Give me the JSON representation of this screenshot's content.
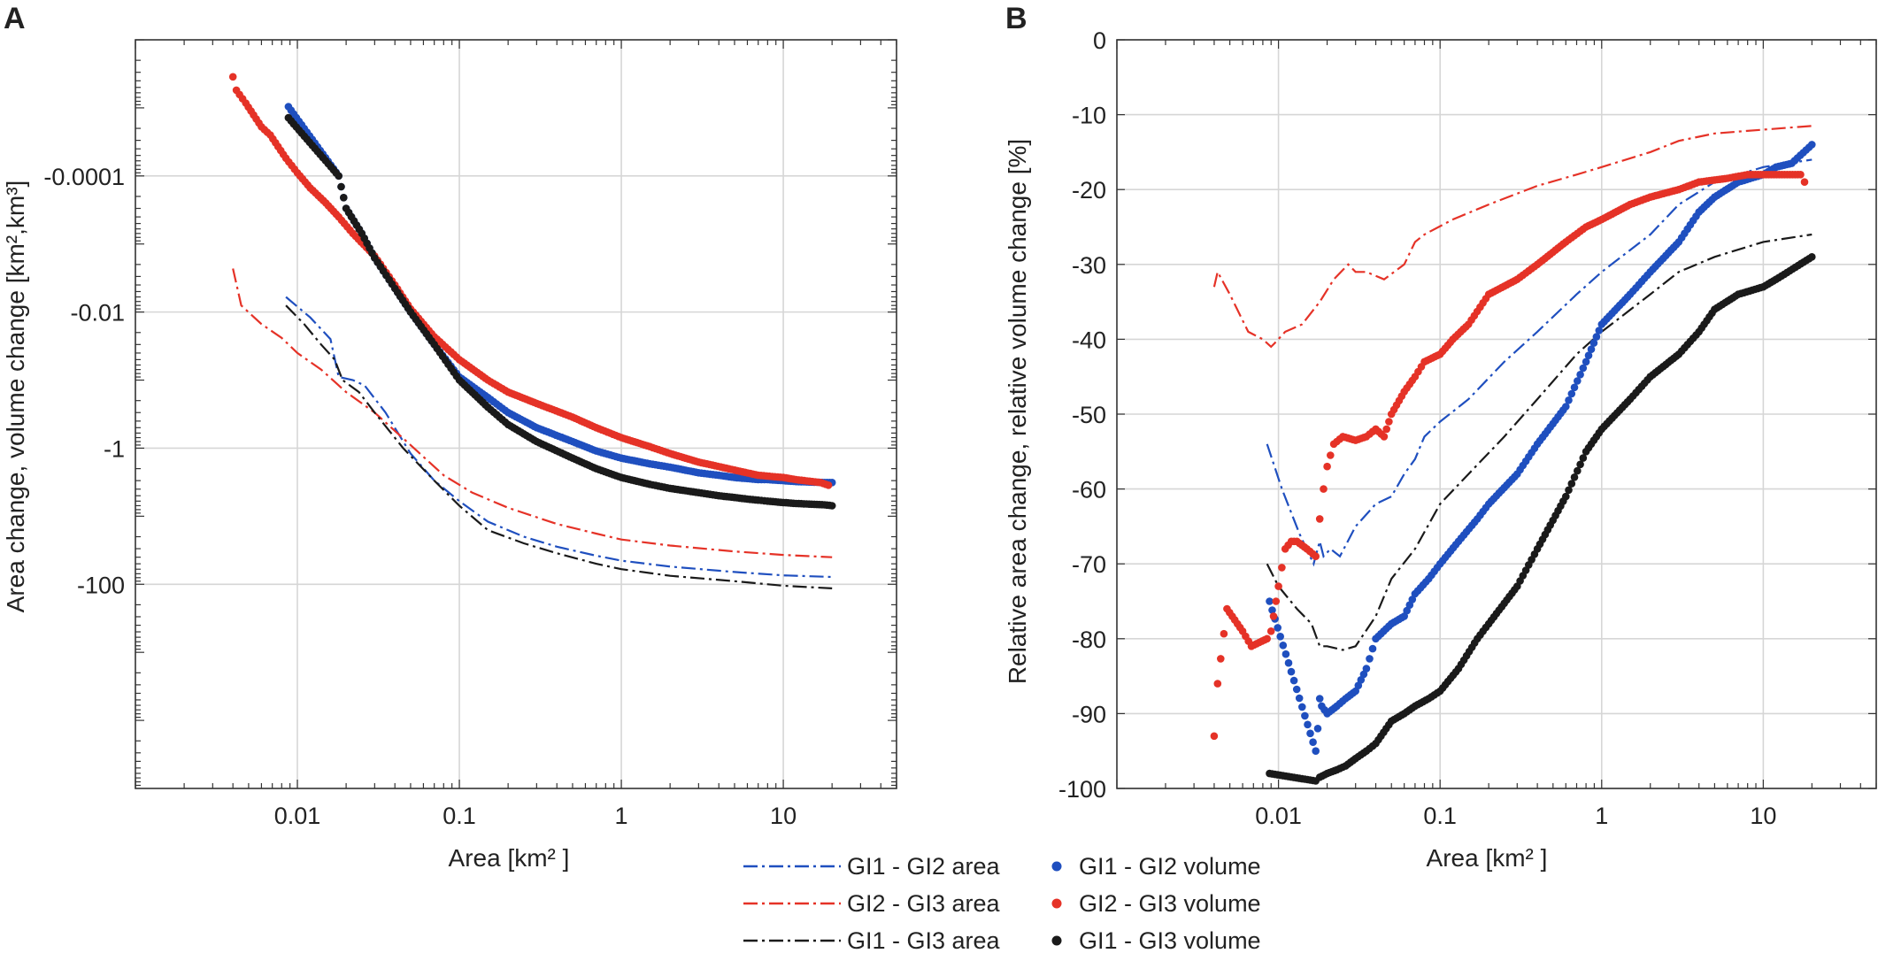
{
  "panel_labels": [
    "A",
    "B"
  ],
  "colors": {
    "gi1_gi2": "#1f4fbf",
    "gi2_gi3": "#e53227",
    "gi1_gi3": "#1a1a1a",
    "grid": "#d6d6d6",
    "axis": "#333333"
  },
  "legend": {
    "items": [
      {
        "label": "GI1 - GI2 area",
        "kind": "line",
        "color": "#1f4fbf"
      },
      {
        "label": "GI2 - GI3 area",
        "kind": "line",
        "color": "#e53227"
      },
      {
        "label": "GI1 - GI3 area",
        "kind": "line",
        "color": "#1a1a1a"
      },
      {
        "label": "GI1 - GI2 volume",
        "kind": "dots",
        "color": "#1f4fbf"
      },
      {
        "label": "GI2 - GI3 volume",
        "kind": "dots",
        "color": "#e53227"
      },
      {
        "label": "GI1 - GI3 volume",
        "kind": "dots",
        "color": "#1a1a1a"
      }
    ]
  },
  "chart_data": [
    {
      "panel": "A",
      "type": "scatter",
      "title": "",
      "xlabel": "Area  [km² ]",
      "ylabel": "Area change, volume change [km²,km³]",
      "xscale": "log",
      "yscale": "log (negative, downward)",
      "xlim": [
        0.001,
        50
      ],
      "ylim_magnitude": [
        1e-06,
        100000
      ],
      "xticks": [
        0.01,
        0.1,
        1,
        10
      ],
      "xtick_labels": [
        "0.01",
        "0.1",
        "1",
        "10"
      ],
      "yticks": [
        0.0001,
        0.01,
        1,
        100
      ],
      "ytick_labels": [
        "-0.0001",
        "-0.01",
        "-1",
        "-100"
      ],
      "grid": true,
      "series": [
        {
          "name": "GI1 - GI2 area",
          "kind": "line",
          "color": "#1f4fbf",
          "x": [
            0.0085,
            0.012,
            0.016,
            0.018,
            0.022,
            0.026,
            0.035,
            0.05,
            0.07,
            0.1,
            0.15,
            0.25,
            0.4,
            0.7,
            1,
            2,
            5,
            10,
            20
          ],
          "y": [
            -0.006,
            -0.012,
            -0.025,
            -0.09,
            -0.1,
            -0.12,
            -0.3,
            -1.2,
            -3,
            -6,
            -12,
            -20,
            -28,
            -38,
            -45,
            -55,
            -66,
            -74,
            -78
          ]
        },
        {
          "name": "GI2 - GI3 area",
          "kind": "line",
          "color": "#e53227",
          "x": [
            0.004,
            0.0045,
            0.006,
            0.008,
            0.01,
            0.014,
            0.02,
            0.03,
            0.05,
            0.08,
            0.12,
            0.2,
            0.4,
            0.7,
            1,
            2,
            5,
            10,
            20
          ],
          "y": [
            -0.0023,
            -0.008,
            -0.015,
            -0.024,
            -0.04,
            -0.07,
            -0.15,
            -0.3,
            -0.9,
            -2.5,
            -4.5,
            -7.5,
            -13,
            -18,
            -22,
            -27,
            -33,
            -37,
            -40
          ]
        },
        {
          "name": "GI1 - GI3 area",
          "kind": "line",
          "color": "#1a1a1a",
          "x": [
            0.0085,
            0.011,
            0.014,
            0.017,
            0.019,
            0.024,
            0.03,
            0.045,
            0.07,
            0.1,
            0.15,
            0.25,
            0.4,
            0.7,
            1,
            2,
            5,
            10,
            20
          ],
          "y": [
            -0.008,
            -0.015,
            -0.03,
            -0.05,
            -0.1,
            -0.15,
            -0.3,
            -1,
            -3,
            -7,
            -16,
            -25,
            -35,
            -50,
            -60,
            -75,
            -90,
            -105,
            -115
          ]
        },
        {
          "name": "GI1 - GI2 volume",
          "kind": "dots",
          "color": "#1f4fbf",
          "x": [
            0.0088,
            0.018,
            0.02,
            0.025,
            0.03,
            0.04,
            0.05,
            0.07,
            0.1,
            0.15,
            0.2,
            0.3,
            0.5,
            0.7,
            1,
            1.5,
            2,
            3,
            4,
            5,
            6,
            7,
            8,
            10,
            12,
            18,
            20
          ],
          "y": [
            -9.6e-06,
            -0.0001,
            -0.0003,
            -0.0007,
            -0.0016,
            -0.0045,
            -0.01,
            -0.03,
            -0.09,
            -0.18,
            -0.3,
            -0.5,
            -0.8,
            -1.1,
            -1.4,
            -1.7,
            -1.9,
            -2.3,
            -2.5,
            -2.7,
            -2.8,
            -2.9,
            -2.9,
            -3.0,
            -3.1,
            -3.2,
            -3.2
          ]
        },
        {
          "name": "GI2 - GI3 volume",
          "kind": "dots",
          "color": "#e53227",
          "x": [
            0.004,
            0.0042,
            0.0048,
            0.006,
            0.0068,
            0.0085,
            0.01,
            0.012,
            0.015,
            0.018,
            0.022,
            0.03,
            0.04,
            0.05,
            0.07,
            0.1,
            0.15,
            0.2,
            0.3,
            0.5,
            0.7,
            1,
            1.5,
            2,
            3,
            5,
            7,
            10,
            12,
            17,
            19
          ],
          "y": [
            -3.5e-06,
            -5.5e-06,
            -8.5e-06,
            -1.9e-05,
            -2.5e-05,
            -5.5e-05,
            -9e-05,
            -0.00015,
            -0.00025,
            -0.0004,
            -0.0007,
            -0.0015,
            -0.004,
            -0.009,
            -0.023,
            -0.05,
            -0.1,
            -0.15,
            -0.22,
            -0.35,
            -0.5,
            -0.7,
            -0.95,
            -1.2,
            -1.6,
            -2.1,
            -2.5,
            -2.7,
            -2.9,
            -3.2,
            -3.5
          ]
        },
        {
          "name": "GI1 - GI3 volume",
          "kind": "dots",
          "color": "#1a1a1a",
          "x": [
            0.0088,
            0.018,
            0.02,
            0.025,
            0.03,
            0.04,
            0.05,
            0.07,
            0.1,
            0.15,
            0.2,
            0.3,
            0.5,
            0.7,
            1,
            1.5,
            2,
            3,
            4,
            5,
            6,
            7,
            8,
            10,
            12,
            18,
            20
          ],
          "y": [
            -1.4e-05,
            -0.0001,
            -0.0003,
            -0.0007,
            -0.0016,
            -0.0045,
            -0.01,
            -0.03,
            -0.1,
            -0.25,
            -0.45,
            -0.8,
            -1.4,
            -2,
            -2.7,
            -3.4,
            -3.9,
            -4.5,
            -5,
            -5.3,
            -5.6,
            -5.8,
            -6,
            -6.3,
            -6.5,
            -6.8,
            -7
          ]
        }
      ]
    },
    {
      "panel": "B",
      "type": "scatter",
      "title": "",
      "xlabel": "Area  [km² ]",
      "ylabel": "Relative area change, relative volume change [%]",
      "xscale": "log",
      "yscale": "linear",
      "xlim": [
        0.001,
        50
      ],
      "ylim": [
        -100,
        0
      ],
      "xticks": [
        0.01,
        0.1,
        1,
        10
      ],
      "xtick_labels": [
        "0.01",
        "0.1",
        "1",
        "10"
      ],
      "yticks": [
        0,
        -10,
        -20,
        -30,
        -40,
        -50,
        -60,
        -70,
        -80,
        -90,
        -100
      ],
      "ytick_labels": [
        "0",
        "-10",
        "-20",
        "-30",
        "-40",
        "-50",
        "-60",
        "-70",
        "-80",
        "-90",
        "-100"
      ],
      "grid": true,
      "series": [
        {
          "name": "GI1 - GI2 area",
          "kind": "line",
          "color": "#1f4fbf",
          "x": [
            0.0085,
            0.0105,
            0.0135,
            0.0165,
            0.018,
            0.019,
            0.021,
            0.024,
            0.03,
            0.04,
            0.05,
            0.06,
            0.07,
            0.08,
            0.1,
            0.15,
            0.25,
            0.4,
            0.7,
            1,
            2,
            3,
            5,
            10,
            20
          ],
          "y": [
            -54,
            -60,
            -66,
            -70,
            -67,
            -69,
            -68,
            -69,
            -65,
            -62,
            -61,
            -58,
            -56,
            -53,
            -51,
            -48,
            -43,
            -39,
            -34,
            -31,
            -26,
            -22,
            -19,
            -17,
            -16
          ]
        },
        {
          "name": "GI2 - GI3 area",
          "kind": "line",
          "color": "#e53227",
          "x": [
            0.004,
            0.0042,
            0.005,
            0.0065,
            0.008,
            0.009,
            0.0095,
            0.011,
            0.014,
            0.018,
            0.022,
            0.027,
            0.03,
            0.035,
            0.045,
            0.06,
            0.07,
            0.08,
            0.12,
            0.2,
            0.4,
            0.7,
            1,
            2,
            3,
            5,
            10,
            20
          ],
          "y": [
            -33,
            -31,
            -34,
            -39,
            -40,
            -41,
            -40.5,
            -39,
            -38,
            -35,
            -32,
            -30,
            -31,
            -31,
            -32,
            -30,
            -27,
            -26,
            -24,
            -22,
            -19.5,
            -18,
            -17,
            -15,
            -13.5,
            -12.5,
            -12,
            -11.5
          ]
        },
        {
          "name": "GI1 - GI3 area",
          "kind": "line",
          "color": "#1a1a1a",
          "x": [
            0.0085,
            0.01,
            0.013,
            0.016,
            0.018,
            0.02,
            0.025,
            0.03,
            0.04,
            0.05,
            0.07,
            0.1,
            0.15,
            0.25,
            0.4,
            0.7,
            1,
            2,
            3,
            5,
            10,
            20
          ],
          "y": [
            -70,
            -73,
            -76,
            -78,
            -81,
            -81,
            -81.5,
            -81,
            -77,
            -72,
            -68,
            -62,
            -58,
            -53,
            -48,
            -42,
            -39,
            -34,
            -31,
            -29,
            -27,
            -26
          ]
        },
        {
          "name": "GI1 - GI2 volume",
          "kind": "dots",
          "color": "#1f4fbf",
          "x": [
            0.0088,
            0.017,
            0.0175,
            0.018,
            0.0185,
            0.02,
            0.023,
            0.026,
            0.03,
            0.035,
            0.04,
            0.05,
            0.06,
            0.07,
            0.085,
            0.1,
            0.13,
            0.17,
            0.2,
            0.3,
            0.4,
            0.6,
            0.8,
            1,
            1.5,
            2,
            3,
            4,
            5,
            7,
            10,
            12,
            15,
            20
          ],
          "y": [
            -75,
            -95,
            -92,
            -88,
            -89,
            -90,
            -89,
            -88,
            -87,
            -84,
            -80,
            -78,
            -77,
            -74,
            -72,
            -70,
            -67,
            -64,
            -62,
            -58,
            -54,
            -49,
            -43,
            -38,
            -34,
            -31,
            -27,
            -23,
            -21,
            -19,
            -18,
            -17,
            -16.5,
            -14
          ]
        },
        {
          "name": "GI2 - GI3 volume",
          "kind": "dots",
          "color": "#e53227",
          "x": [
            0.004,
            0.0042,
            0.0048,
            0.006,
            0.0068,
            0.0085,
            0.009,
            0.01,
            0.011,
            0.012,
            0.013,
            0.015,
            0.017,
            0.018,
            0.019,
            0.02,
            0.022,
            0.025,
            0.03,
            0.035,
            0.04,
            0.045,
            0.05,
            0.06,
            0.07,
            0.08,
            0.1,
            0.12,
            0.15,
            0.2,
            0.3,
            0.4,
            0.6,
            0.8,
            1,
            1.5,
            2,
            3,
            4,
            6,
            8,
            10,
            17,
            18
          ],
          "y": [
            -93,
            -86,
            -76,
            -79,
            -81,
            -80,
            -79,
            -73,
            -68,
            -67,
            -67,
            -68,
            -69,
            -64,
            -60,
            -57,
            -54,
            -53,
            -53.5,
            -53,
            -52,
            -53,
            -50,
            -47,
            -45,
            -43,
            -42,
            -40,
            -38,
            -34,
            -32,
            -30,
            -27,
            -25,
            -24,
            -22,
            -21,
            -20,
            -19,
            -18.5,
            -18,
            -18,
            -18,
            -19
          ]
        },
        {
          "name": "GI1 - GI3 volume",
          "kind": "dots",
          "color": "#1a1a1a",
          "x": [
            0.0088,
            0.017,
            0.018,
            0.02,
            0.023,
            0.026,
            0.03,
            0.035,
            0.04,
            0.05,
            0.06,
            0.07,
            0.085,
            0.1,
            0.13,
            0.17,
            0.2,
            0.3,
            0.4,
            0.6,
            0.8,
            1,
            1.5,
            2,
            3,
            4,
            5,
            7,
            10,
            12,
            20
          ],
          "y": [
            -98,
            -99,
            -98.5,
            -98,
            -97.5,
            -97,
            -96,
            -95,
            -94,
            -91,
            -90,
            -89,
            -88,
            -87,
            -84,
            -80,
            -78,
            -73,
            -68,
            -61,
            -55,
            -52,
            -48,
            -45,
            -42,
            -39,
            -36,
            -34,
            -33,
            -32,
            -29
          ]
        }
      ]
    }
  ]
}
